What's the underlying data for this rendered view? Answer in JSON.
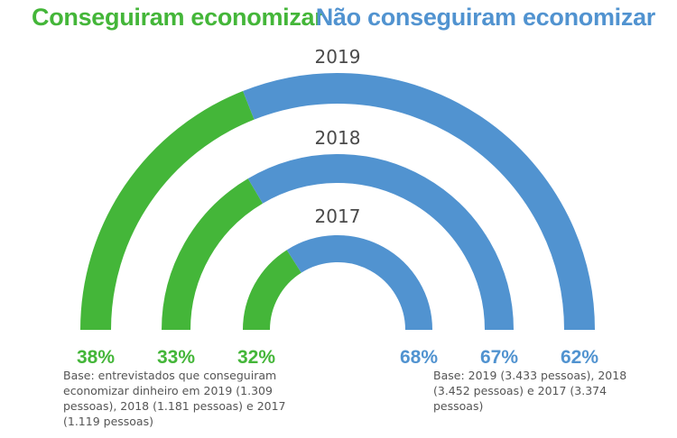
{
  "legend": {
    "achieved": "Conseguiram economizar",
    "not_achieved": "Não conseguiram economizar"
  },
  "colors": {
    "achieved": "#44b639",
    "not_achieved": "#5193d0"
  },
  "notes": {
    "left": "Base: entrevistados que conseguiram economizar dinheiro em 2019 (1.309 pessoas), 2018 (1.181 pessoas) e 2017 (1.119 pessoas)",
    "right": "Base: 2019 (3.433 pessoas), 2018 (3.452 pessoas) e 2017 (3.374 pessoas)"
  },
  "chart_data": {
    "type": "semicircular-donut",
    "series": [
      {
        "name": "Conseguiram economizar",
        "values": [
          38,
          33,
          32
        ]
      },
      {
        "name": "Não conseguiram economizar",
        "values": [
          62,
          67,
          68
        ]
      }
    ],
    "rings": [
      {
        "year": "2019",
        "achieved": 38,
        "not_achieved": 62,
        "achieved_label": "38%",
        "not_achieved_label": "62%"
      },
      {
        "year": "2018",
        "achieved": 33,
        "not_achieved": 67,
        "achieved_label": "33%",
        "not_achieved_label": "67%"
      },
      {
        "year": "2017",
        "achieved": 32,
        "not_achieved": 68,
        "achieved_label": "32%",
        "not_achieved_label": "68%"
      }
    ]
  }
}
